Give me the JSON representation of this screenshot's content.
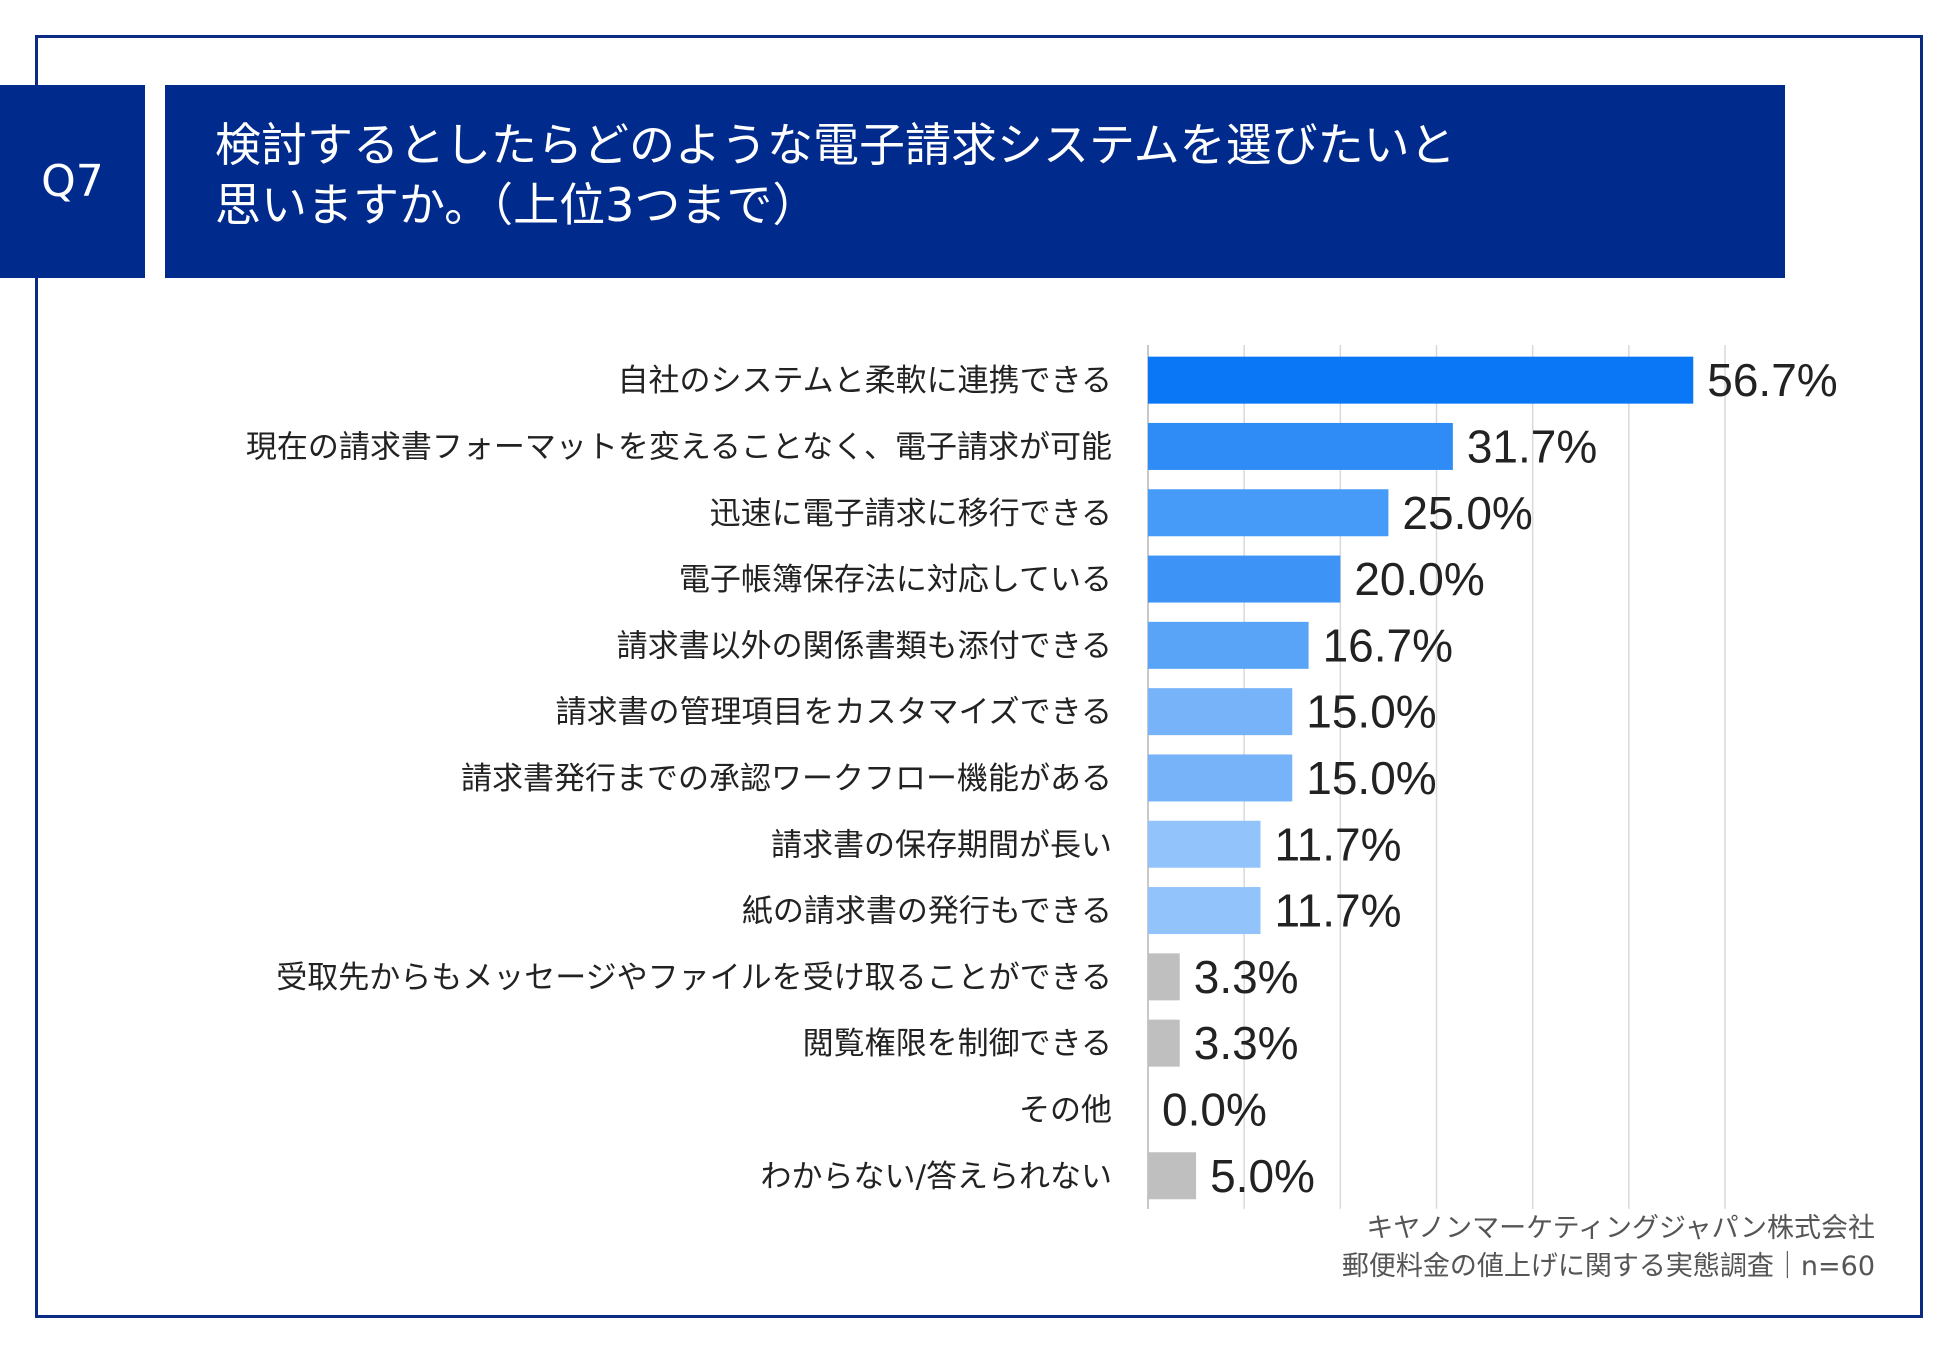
{
  "header": {
    "question_id": "Q7",
    "title_line1": "検討するとしたらどのような電子請求システムを選びたいと",
    "title_line2": "思いますか。（上位3つまで）"
  },
  "chart_data": {
    "type": "bar",
    "orientation": "horizontal",
    "categories": [
      "自社のシステムと柔軟に連携できる",
      "現在の請求書フォーマットを変えることなく、電子請求が可能",
      "迅速に電子請求に移行できる",
      "電子帳簿保存法に対応している",
      "請求書以外の関係書類も添付できる",
      "請求書の管理項目をカスタマイズできる",
      "請求書発行までの承認ワークフロー機能がある",
      "請求書の保存期間が長い",
      "紙の請求書の発行もできる",
      "受取先からもメッセージやファイルを受け取ることができる",
      "閲覧権限を制御できる",
      "その他",
      "わからない/答えられない"
    ],
    "values": [
      56.7,
      31.7,
      25.0,
      20.0,
      16.7,
      15.0,
      15.0,
      11.7,
      11.7,
      3.3,
      3.3,
      0.0,
      5.0
    ],
    "value_labels": [
      "56.7%",
      "31.7%",
      "25.0%",
      "20.0%",
      "16.7%",
      "15.0%",
      "15.0%",
      "11.7%",
      "11.7%",
      "3.3%",
      "3.3%",
      "0.0%",
      "5.0%"
    ],
    "bar_colors": [
      "#0a78f6",
      "#2f8cf6",
      "#459bf7",
      "#3d93f6",
      "#5aa4f8",
      "#76b3f9",
      "#76b3f9",
      "#93c3fb",
      "#93c3fb",
      "#bfbfbf",
      "#bfbfbf",
      "#bfbfbf",
      "#bfbfbf"
    ],
    "xlim": [
      0,
      60
    ],
    "grid": true,
    "title": "検討するとしたらどのような電子請求システムを選びたいと思いますか。（上位3つまで）",
    "xlabel": "",
    "ylabel": ""
  },
  "footer": {
    "company": "キヤノンマーケティングジャパン株式会社",
    "survey": "郵便料金の値上げに関する実態調査｜n=60"
  }
}
